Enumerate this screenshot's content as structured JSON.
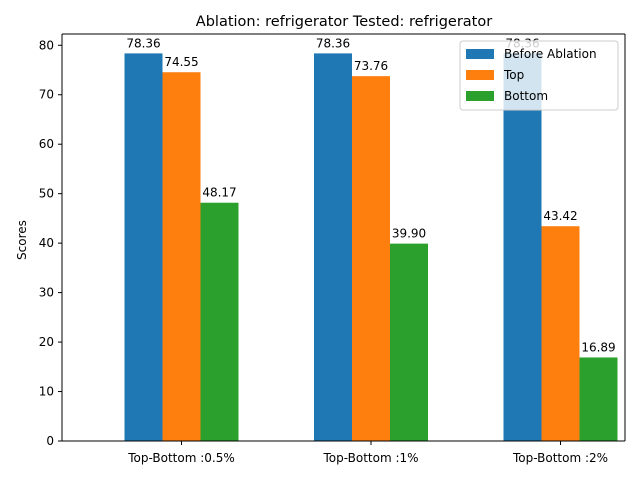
{
  "chart_data": {
    "type": "bar",
    "title": "Ablation: refrigerator Tested: refrigerator",
    "xlabel": "",
    "ylabel": "Scores",
    "categories": [
      "Top-Bottom :0.5%",
      "Top-Bottom :1%",
      "Top-Bottom :2%"
    ],
    "series": [
      {
        "name": "Before Ablation",
        "color": "#1f77b4",
        "values": [
          78.36,
          78.36,
          78.36
        ],
        "labels": [
          "78.36",
          "78.36",
          "78.36"
        ]
      },
      {
        "name": "Top",
        "color": "#ff7f0e",
        "values": [
          74.55,
          73.76,
          43.42
        ],
        "labels": [
          "74.55",
          "73.76",
          "43.42"
        ]
      },
      {
        "name": "Bottom",
        "color": "#2ca02c",
        "values": [
          48.17,
          39.9,
          16.89
        ],
        "labels": [
          "48.17",
          "39.90",
          "16.89"
        ]
      }
    ],
    "ylim": [
      0,
      82.28
    ],
    "yticks": [
      0,
      10,
      20,
      30,
      40,
      50,
      60,
      70,
      80
    ],
    "grid": false,
    "legend_position": "top-right"
  }
}
